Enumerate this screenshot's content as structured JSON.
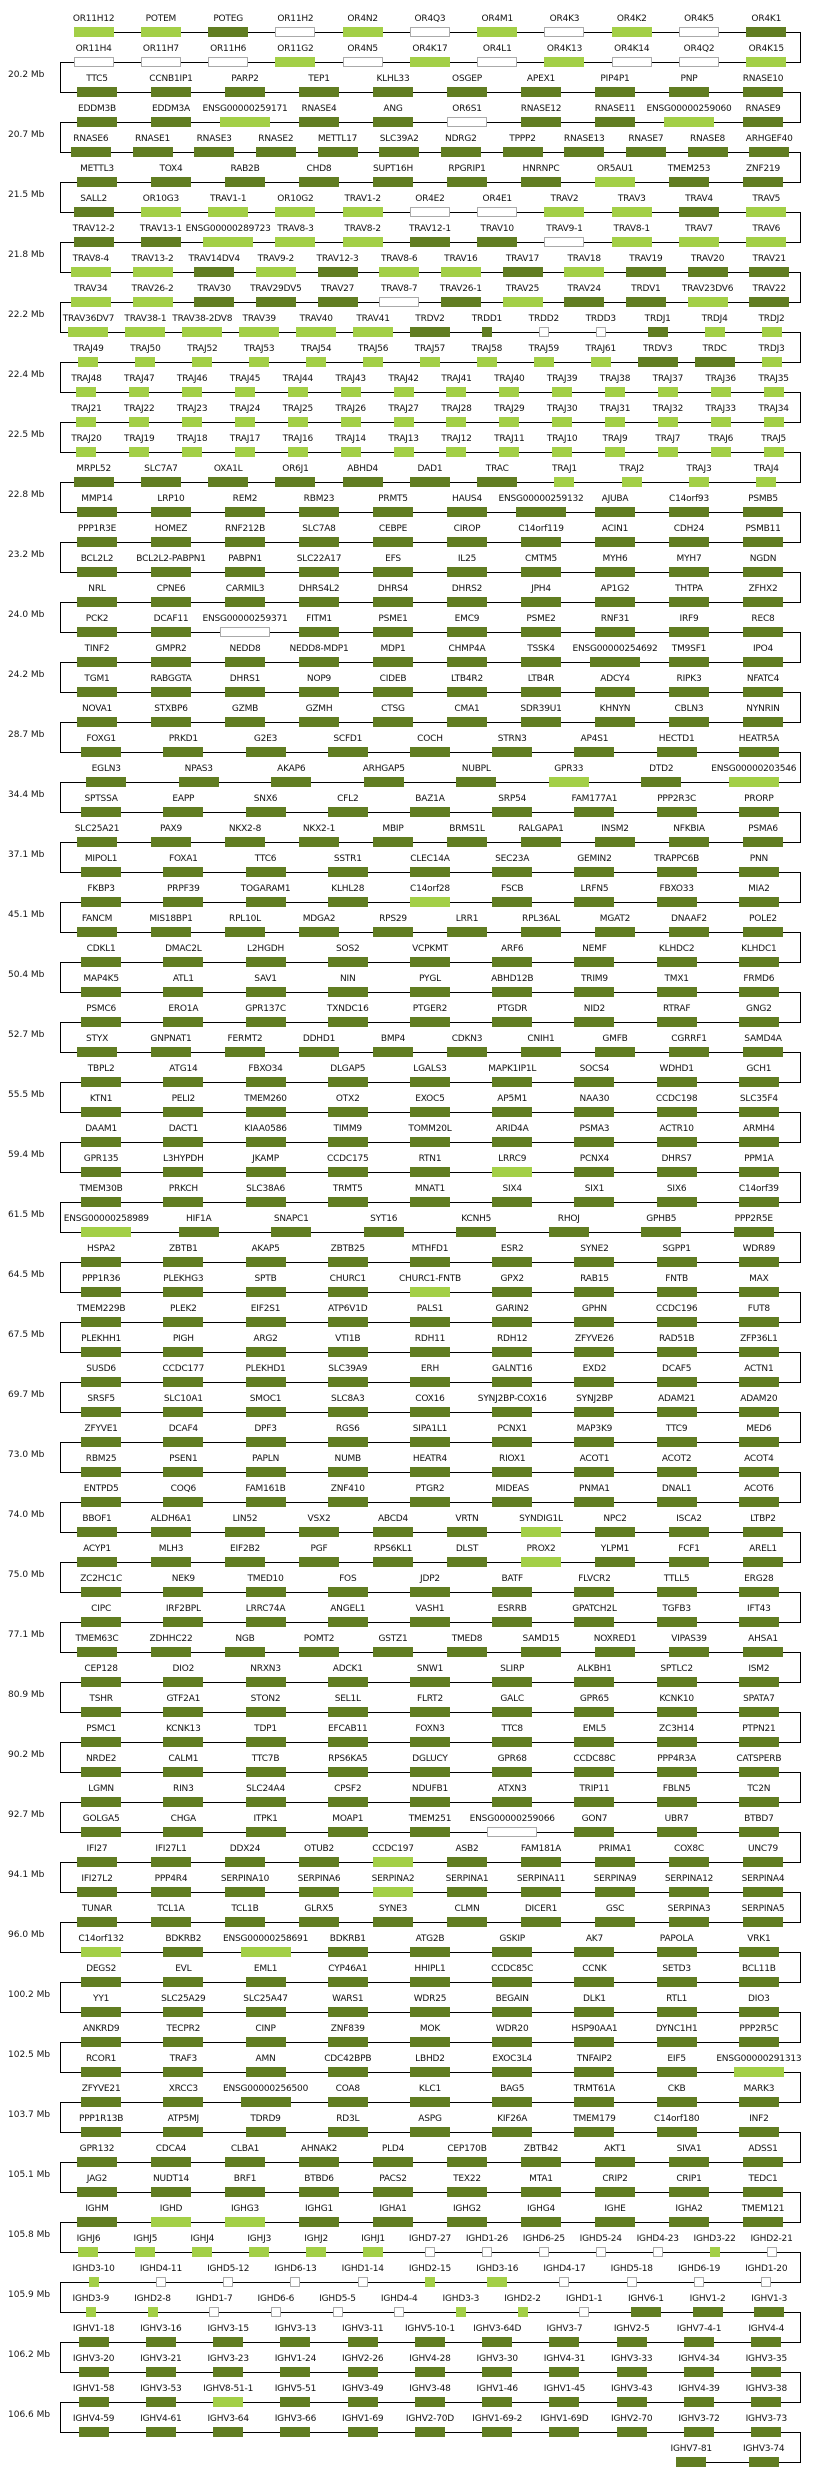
{
  "colors": {
    "d": "#617d22",
    "l": "#a3cf47",
    "w": "#ffffff",
    "border_w": "#aaaaaa"
  },
  "rows": [
    {
      "genes": [
        "OR11H12",
        "POTEM",
        "POTEG",
        "OR11H2",
        "OR4N2",
        "OR4Q3",
        "OR4M1",
        "OR4K3",
        "OR4K2",
        "OR4K5",
        "OR4K1"
      ],
      "types": "lldwlwlwlwd"
    },
    {
      "genes": [
        "OR11H4",
        "OR11H7",
        "OR11H6",
        "OR11G2",
        "OR4N5",
        "OR4K17",
        "OR4L1",
        "OR4K13",
        "OR4K14",
        "OR4Q2",
        "OR4K15"
      ],
      "types": "wwwlwlwlwwl"
    },
    {
      "mb": "20.2 Mb",
      "genes": [
        "TTC5",
        "CCNB1IP1",
        "PARP2",
        "TEP1",
        "KLHL33",
        "OSGEP",
        "APEX1",
        "PIP4P1",
        "PNP",
        "RNASE10"
      ]
    },
    {
      "genes": [
        "EDDM3B",
        "EDDM3A",
        "ENSG00000259171",
        "RNASE4",
        "ANG",
        "OR6S1",
        "RNASE12",
        "RNASE11",
        "ENSG00000259060",
        "RNASE9"
      ],
      "types": "ddlddwddld"
    },
    {
      "mb": "20.7 Mb",
      "genes": [
        "RNASE6",
        "RNASE1",
        "RNASE3",
        "RNASE2",
        "METTL17",
        "SLC39A2",
        "NDRG2",
        "TPPP2",
        "RNASE13",
        "RNASE7",
        "RNASE8",
        "ARHGEF40"
      ]
    },
    {
      "genes": [
        "METTL3",
        "TOX4",
        "RAB2B",
        "CHD8",
        "SUPT16H",
        "RPGRIP1",
        "HNRNPC",
        "OR5AU1",
        "TMEM253",
        "ZNF219"
      ],
      "types": "dddddddldd"
    },
    {
      "mb": "21.5 Mb",
      "genes": [
        "SALL2",
        "OR10G3",
        "TRAV1-1",
        "OR10G2",
        "TRAV1-2",
        "OR4E2",
        "OR4E1",
        "TRAV2",
        "TRAV3",
        "TRAV4",
        "TRAV5"
      ],
      "types": "dllllwwlldl"
    },
    {
      "genes": [
        "TRAV12-2",
        "TRAV13-1",
        "ENSG00000289723",
        "TRAV8-3",
        "TRAV8-2",
        "TRAV12-1",
        "TRAV10",
        "TRAV9-1",
        "TRAV8-1",
        "TRAV7",
        "TRAV6"
      ],
      "types": "ddlllddwlll"
    },
    {
      "mb": "21.8 Mb",
      "genes": [
        "TRAV8-4",
        "TRAV13-2",
        "TRAV14DV4",
        "TRAV9-2",
        "TRAV12-3",
        "TRAV8-6",
        "TRAV16",
        "TRAV17",
        "TRAV18",
        "TRAV19",
        "TRAV20",
        "TRAV21"
      ],
      "types": "lldldlldlddd"
    },
    {
      "genes": [
        "TRAV34",
        "TRAV26-2",
        "TRAV30",
        "TRAV29DV5",
        "TRAV27",
        "TRAV8-7",
        "TRAV26-1",
        "TRAV25",
        "TRAV24",
        "TRDV1",
        "TRAV23DV6",
        "TRAV22"
      ],
      "types": "lldddwdlddld"
    },
    {
      "mb": "22.2 Mb",
      "genes": [
        "TRAV36DV7",
        "TRAV38-1",
        "TRAV38-2DV8",
        "TRAV39",
        "TRAV40",
        "TRAV41",
        "TRDV2",
        "TRDD1",
        "TRDD2",
        "TRDD3",
        "TRDJ1",
        "TRDJ4",
        "TRDJ2"
      ],
      "types": "llllllddwwdll"
    },
    {
      "genes": [
        "TRAJ49",
        "TRAJ50",
        "TRAJ52",
        "TRAJ53",
        "TRAJ54",
        "TRAJ56",
        "TRAJ57",
        "TRAJ58",
        "TRAJ59",
        "TRAJ61",
        "TRDV3",
        "TRDC",
        "TRDJ3"
      ],
      "types": "llllllllllddl"
    },
    {
      "mb": "22.4 Mb",
      "genes": [
        "TRAJ48",
        "TRAJ47",
        "TRAJ46",
        "TRAJ45",
        "TRAJ44",
        "TRAJ43",
        "TRAJ42",
        "TRAJ41",
        "TRAJ40",
        "TRAJ39",
        "TRAJ38",
        "TRAJ37",
        "TRAJ36",
        "TRAJ35"
      ],
      "types": "llllllllllllll"
    },
    {
      "genes": [
        "TRAJ21",
        "TRAJ22",
        "TRAJ23",
        "TRAJ24",
        "TRAJ25",
        "TRAJ26",
        "TRAJ27",
        "TRAJ28",
        "TRAJ29",
        "TRAJ30",
        "TRAJ31",
        "TRAJ32",
        "TRAJ33",
        "TRAJ34"
      ],
      "types": "llllllllllllll"
    },
    {
      "mb": "22.5 Mb",
      "genes": [
        "TRAJ20",
        "TRAJ19",
        "TRAJ18",
        "TRAJ17",
        "TRAJ16",
        "TRAJ14",
        "TRAJ13",
        "TRAJ12",
        "TRAJ11",
        "TRAJ10",
        "TRAJ9",
        "TRAJ7",
        "TRAJ6",
        "TRAJ5"
      ],
      "types": "llllllllllllll"
    },
    {
      "genes": [
        "MRPL52",
        "SLC7A7",
        "OXA1L",
        "OR6J1",
        "ABHD4",
        "DAD1",
        "TRAC",
        "TRAJ1",
        "TRAJ2",
        "TRAJ3",
        "TRAJ4"
      ],
      "types": "dddddddllll"
    },
    {
      "mb": "22.8 Mb",
      "genes": [
        "MMP14",
        "LRP10",
        "REM2",
        "RBM23",
        "PRMT5",
        "HAUS4",
        "ENSG00000259132",
        "AJUBA",
        "C14orf93",
        "PSMB5"
      ]
    },
    {
      "genes": [
        "PPP1R3E",
        "HOMEZ",
        "RNF212B",
        "SLC7A8",
        "CEBPE",
        "CIROP",
        "C14orf119",
        "ACIN1",
        "CDH24",
        "PSMB11"
      ]
    },
    {
      "mb": "23.2 Mb",
      "genes": [
        "BCL2L2",
        "BCL2L2-PABPN1",
        "PABPN1",
        "SLC22A17",
        "EFS",
        "IL25",
        "CMTM5",
        "MYH6",
        "MYH7",
        "NGDN"
      ]
    },
    {
      "genes": [
        "NRL",
        "CPNE6",
        "CARMIL3",
        "DHRS4L2",
        "DHRS4",
        "DHRS2",
        "JPH4",
        "AP1G2",
        "THTPA",
        "ZFHX2"
      ]
    },
    {
      "mb": "24.0 Mb",
      "genes": [
        "PCK2",
        "DCAF11",
        "ENSG00000259371",
        "FITM1",
        "PSME1",
        "EMC9",
        "PSME2",
        "RNF31",
        "IRF9",
        "REC8"
      ],
      "types": "ddwddddddd"
    },
    {
      "genes": [
        "TINF2",
        "GMPR2",
        "NEDD8",
        "NEDD8-MDP1",
        "MDP1",
        "CHMP4A",
        "TSSK4",
        "ENSG00000254692",
        "TM9SF1",
        "IPO4"
      ]
    },
    {
      "mb": "24.2 Mb",
      "genes": [
        "TGM1",
        "RABGGTA",
        "DHRS1",
        "NOP9",
        "CIDEB",
        "LTB4R2",
        "LTB4R",
        "ADCY4",
        "RIPK3",
        "NFATC4"
      ]
    },
    {
      "genes": [
        "NOVA1",
        "STXBP6",
        "GZMB",
        "GZMH",
        "CTSG",
        "CMA1",
        "SDR39U1",
        "KHNYN",
        "CBLN3",
        "NYNRIN"
      ]
    },
    {
      "mb": "28.7 Mb",
      "genes": [
        "FOXG1",
        "PRKD1",
        "G2E3",
        "SCFD1",
        "COCH",
        "STRN3",
        "AP4S1",
        "HECTD1",
        "HEATR5A"
      ]
    },
    {
      "genes": [
        "EGLN3",
        "NPAS3",
        "AKAP6",
        "ARHGAP5",
        "NUBPL",
        "GPR33",
        "DTD2",
        "ENSG00000203546"
      ],
      "types": "dddddldl"
    },
    {
      "mb": "34.4 Mb",
      "genes": [
        "SPTSSA",
        "EAPP",
        "SNX6",
        "CFL2",
        "BAZ1A",
        "SRP54",
        "FAM177A1",
        "PPP2R3C",
        "PRORP"
      ]
    },
    {
      "genes": [
        "SLC25A21",
        "PAX9",
        "NKX2-8",
        "NKX2-1",
        "MBIP",
        "BRMS1L",
        "RALGAPA1",
        "INSM2",
        "NFKBIA",
        "PSMA6"
      ]
    },
    {
      "mb": "37.1 Mb",
      "genes": [
        "MIPOL1",
        "FOXA1",
        "TTC6",
        "SSTR1",
        "CLEC14A",
        "SEC23A",
        "GEMIN2",
        "TRAPPC6B",
        "PNN"
      ]
    },
    {
      "genes": [
        "FKBP3",
        "PRPF39",
        "TOGARAM1",
        "KLHL28",
        "C14orf28",
        "FSCB",
        "LRFN5",
        "FBXO33",
        "MIA2"
      ],
      "types": "ddddldddd"
    },
    {
      "mb": "45.1 Mb",
      "genes": [
        "FANCM",
        "MIS18BP1",
        "RPL10L",
        "MDGA2",
        "RPS29",
        "LRR1",
        "RPL36AL",
        "MGAT2",
        "DNAAF2",
        "POLE2"
      ]
    },
    {
      "genes": [
        "CDKL1",
        "DMAC2L",
        "L2HGDH",
        "SOS2",
        "VCPKMT",
        "ARF6",
        "NEMF",
        "KLHDC2",
        "KLHDC1"
      ]
    },
    {
      "mb": "50.4 Mb",
      "genes": [
        "MAP4K5",
        "ATL1",
        "SAV1",
        "NIN",
        "PYGL",
        "ABHD12B",
        "TRIM9",
        "TMX1",
        "FRMD6"
      ]
    },
    {
      "genes": [
        "PSMC6",
        "ERO1A",
        "GPR137C",
        "TXNDC16",
        "PTGER2",
        "PTGDR",
        "NID2",
        "RTRAF",
        "GNG2"
      ]
    },
    {
      "mb": "52.7 Mb",
      "genes": [
        "STYX",
        "GNPNAT1",
        "FERMT2",
        "DDHD1",
        "BMP4",
        "CDKN3",
        "CNIH1",
        "GMFB",
        "CGRRF1",
        "SAMD4A"
      ]
    },
    {
      "genes": [
        "TBPL2",
        "ATG14",
        "FBXO34",
        "DLGAP5",
        "LGALS3",
        "MAPK1IP1L",
        "SOCS4",
        "WDHD1",
        "GCH1"
      ]
    },
    {
      "mb": "55.5 Mb",
      "genes": [
        "KTN1",
        "PELI2",
        "TMEM260",
        "OTX2",
        "EXOC5",
        "AP5M1",
        "NAA30",
        "CCDC198",
        "SLC35F4"
      ]
    },
    {
      "genes": [
        "DAAM1",
        "DACT1",
        "KIAA0586",
        "TIMM9",
        "TOMM20L",
        "ARID4A",
        "PSMA3",
        "ACTR10",
        "ARMH4"
      ]
    },
    {
      "mb": "59.4 Mb",
      "genes": [
        "GPR135",
        "L3HYPDH",
        "JKAMP",
        "CCDC175",
        "RTN1",
        "LRRC9",
        "PCNX4",
        "DHRS7",
        "PPM1A"
      ],
      "types": "dddddlddd"
    },
    {
      "genes": [
        "TMEM30B",
        "PRKCH",
        "SLC38A6",
        "TRMT5",
        "MNAT1",
        "SIX4",
        "SIX1",
        "SIX6",
        "C14orf39"
      ]
    },
    {
      "mb": "61.5 Mb",
      "genes": [
        "ENSG00000258989",
        "HIF1A",
        "SNAPC1",
        "SYT16",
        "KCNH5",
        "RHOJ",
        "GPHB5",
        "PPP2R5E"
      ],
      "types": "lddddddd"
    },
    {
      "genes": [
        "HSPA2",
        "ZBTB1",
        "AKAP5",
        "ZBTB25",
        "MTHFD1",
        "ESR2",
        "SYNE2",
        "SGPP1",
        "WDR89"
      ]
    },
    {
      "mb": "64.5 Mb",
      "genes": [
        "PPP1R36",
        "PLEKHG3",
        "SPTB",
        "CHURC1",
        "CHURC1-FNTB",
        "GPX2",
        "RAB15",
        "FNTB",
        "MAX"
      ],
      "types": "ddddldddd"
    },
    {
      "genes": [
        "TMEM229B",
        "PLEK2",
        "EIF2S1",
        "ATP6V1D",
        "PALS1",
        "GARIN2",
        "GPHN",
        "CCDC196",
        "FUT8"
      ]
    },
    {
      "mb": "67.5 Mb",
      "genes": [
        "PLEKHH1",
        "PIGH",
        "ARG2",
        "VTI1B",
        "RDH11",
        "RDH12",
        "ZFYVE26",
        "RAD51B",
        "ZFP36L1"
      ]
    },
    {
      "genes": [
        "SUSD6",
        "CCDC177",
        "PLEKHD1",
        "SLC39A9",
        "ERH",
        "GALNT16",
        "EXD2",
        "DCAF5",
        "ACTN1"
      ]
    },
    {
      "mb": "69.7 Mb",
      "genes": [
        "SRSF5",
        "SLC10A1",
        "SMOC1",
        "SLC8A3",
        "COX16",
        "SYNJ2BP-COX16",
        "SYNJ2BP",
        "ADAM21",
        "ADAM20"
      ]
    },
    {
      "genes": [
        "ZFYVE1",
        "DCAF4",
        "DPF3",
        "RGS6",
        "SIPA1L1",
        "PCNX1",
        "MAP3K9",
        "TTC9",
        "MED6"
      ]
    },
    {
      "mb": "73.0 Mb",
      "genes": [
        "RBM25",
        "PSEN1",
        "PAPLN",
        "NUMB",
        "HEATR4",
        "RIOX1",
        "ACOT1",
        "ACOT2",
        "ACOT4"
      ]
    },
    {
      "genes": [
        "ENTPD5",
        "COQ6",
        "FAM161B",
        "ZNF410",
        "PTGR2",
        "MIDEAS",
        "PNMA1",
        "DNAL1",
        "ACOT6"
      ]
    },
    {
      "mb": "74.0 Mb",
      "genes": [
        "BBOF1",
        "ALDH6A1",
        "LIN52",
        "VSX2",
        "ABCD4",
        "VRTN",
        "SYNDIG1L",
        "NPC2",
        "ISCA2",
        "LTBP2"
      ],
      "types": "ddddddlddd"
    },
    {
      "genes": [
        "ACYP1",
        "MLH3",
        "EIF2B2",
        "PGF",
        "RPS6KL1",
        "DLST",
        "PROX2",
        "YLPM1",
        "FCF1",
        "AREL1"
      ],
      "types": "ddddddlddd"
    },
    {
      "mb": "75.0 Mb",
      "genes": [
        "ZC2HC1C",
        "NEK9",
        "TMED10",
        "FOS",
        "JDP2",
        "BATF",
        "FLVCR2",
        "TTLL5",
        "ERG28"
      ]
    },
    {
      "genes": [
        "CIPC",
        "IRF2BPL",
        "LRRC74A",
        "ANGEL1",
        "VASH1",
        "ESRRB",
        "GPATCH2L",
        "TGFB3",
        "IFT43"
      ]
    },
    {
      "mb": "77.1 Mb",
      "genes": [
        "TMEM63C",
        "ZDHHC22",
        "NGB",
        "POMT2",
        "GSTZ1",
        "TMED8",
        "SAMD15",
        "NOXRED1",
        "VIPAS39",
        "AHSA1"
      ]
    },
    {
      "genes": [
        "CEP128",
        "DIO2",
        "NRXN3",
        "ADCK1",
        "SNW1",
        "SLIRP",
        "ALKBH1",
        "SPTLC2",
        "ISM2"
      ]
    },
    {
      "mb": "80.9 Mb",
      "genes": [
        "TSHR",
        "GTF2A1",
        "STON2",
        "SEL1L",
        "FLRT2",
        "GALC",
        "GPR65",
        "KCNK10",
        "SPATA7"
      ]
    },
    {
      "genes": [
        "PSMC1",
        "KCNK13",
        "TDP1",
        "EFCAB11",
        "FOXN3",
        "TTC8",
        "EML5",
        "ZC3H14",
        "PTPN21"
      ]
    },
    {
      "mb": "90.2 Mb",
      "genes": [
        "NRDE2",
        "CALM1",
        "TTC7B",
        "RPS6KA5",
        "DGLUCY",
        "GPR68",
        "CCDC88C",
        "PPP4R3A",
        "CATSPERB"
      ]
    },
    {
      "genes": [
        "LGMN",
        "RIN3",
        "SLC24A4",
        "CPSF2",
        "NDUFB1",
        "ATXN3",
        "TRIP11",
        "FBLN5",
        "TC2N"
      ]
    },
    {
      "mb": "92.7 Mb",
      "genes": [
        "GOLGA5",
        "CHGA",
        "ITPK1",
        "MOAP1",
        "TMEM251",
        "ENSG00000259066",
        "GON7",
        "UBR7",
        "BTBD7"
      ],
      "types": "dddddwddd"
    },
    {
      "genes": [
        "IFI27",
        "IFI27L1",
        "DDX24",
        "OTUB2",
        "CCDC197",
        "ASB2",
        "FAM181A",
        "PRIMA1",
        "COX8C",
        "UNC79"
      ],
      "types": "ddddlddddd"
    },
    {
      "mb": "94.1 Mb",
      "genes": [
        "IFI27L2",
        "PPP4R4",
        "SERPINA10",
        "SERPINA6",
        "SERPINA2",
        "SERPINA1",
        "SERPINA11",
        "SERPINA9",
        "SERPINA12",
        "SERPINA4"
      ],
      "types": "ddddlddddd"
    },
    {
      "genes": [
        "TUNAR",
        "TCL1A",
        "TCL1B",
        "GLRX5",
        "SYNE3",
        "CLMN",
        "DICER1",
        "GSC",
        "SERPINA3",
        "SERPINA5"
      ]
    },
    {
      "mb": "96.0 Mb",
      "genes": [
        "C14orf132",
        "BDKRB2",
        "ENSG00000258691",
        "BDKRB1",
        "ATG2B",
        "GSKIP",
        "AK7",
        "PAPOLA",
        "VRK1"
      ],
      "types": "ldldddddd"
    },
    {
      "genes": [
        "DEGS2",
        "EVL",
        "EML1",
        "CYP46A1",
        "HHIPL1",
        "CCDC85C",
        "CCNK",
        "SETD3",
        "BCL11B"
      ]
    },
    {
      "mb": "100.2 Mb",
      "genes": [
        "YY1",
        "SLC25A29",
        "SLC25A47",
        "WARS1",
        "WDR25",
        "BEGAIN",
        "DLK1",
        "RTL1",
        "DIO3"
      ]
    },
    {
      "genes": [
        "ANKRD9",
        "TECPR2",
        "CINP",
        "ZNF839",
        "MOK",
        "WDR20",
        "HSP90AA1",
        "DYNC1H1",
        "PPP2R5C"
      ]
    },
    {
      "mb": "102.5 Mb",
      "genes": [
        "RCOR1",
        "TRAF3",
        "AMN",
        "CDC42BPB",
        "LBHD2",
        "EXOC3L4",
        "TNFAIP2",
        "EIF5",
        "ENSG00000291313"
      ],
      "types": "ddddddddl"
    },
    {
      "genes": [
        "ZFYVE21",
        "XRCC3",
        "ENSG00000256500",
        "COA8",
        "KLC1",
        "BAG5",
        "TRMT61A",
        "CKB",
        "MARK3"
      ]
    },
    {
      "mb": "103.7 Mb",
      "genes": [
        "PPP1R13B",
        "ATP5MJ",
        "TDRD9",
        "RD3L",
        "ASPG",
        "KIF26A",
        "TMEM179",
        "C14orf180",
        "INF2"
      ]
    },
    {
      "genes": [
        "GPR132",
        "CDCA4",
        "CLBA1",
        "AHNAK2",
        "PLD4",
        "CEP170B",
        "ZBTB42",
        "AKT1",
        "SIVA1",
        "ADSS1"
      ]
    },
    {
      "mb": "105.1 Mb",
      "genes": [
        "JAG2",
        "NUDT14",
        "BRF1",
        "BTBD6",
        "PACS2",
        "TEX22",
        "MTA1",
        "CRIP2",
        "CRIP1",
        "TEDC1"
      ]
    },
    {
      "genes": [
        "IGHM",
        "IGHD",
        "IGHG3",
        "IGHG1",
        "IGHA1",
        "IGHG2",
        "IGHG4",
        "IGHE",
        "IGHA2",
        "TMEM121"
      ],
      "types": "dllddddddd"
    },
    {
      "mb": "105.8 Mb",
      "genes": [
        "IGHJ6",
        "IGHJ5",
        "IGHJ4",
        "IGHJ3",
        "IGHJ2",
        "IGHJ1",
        "IGHD7-27",
        "IGHD1-26",
        "IGHD6-25",
        "IGHD5-24",
        "IGHD4-23",
        "IGHD3-22",
        "IGHD2-21"
      ],
      "types": "llllllwwwwwlw"
    },
    {
      "genes": [
        "IGHD3-10",
        "IGHD4-11",
        "IGHD5-12",
        "IGHD6-13",
        "IGHD1-14",
        "IGHD2-15",
        "IGHD3-16",
        "IGHD4-17",
        "IGHD5-18",
        "IGHD6-19",
        "IGHD1-20"
      ],
      "types": "lwwwwllwwww"
    },
    {
      "mb": "105.9 Mb",
      "genes": [
        "IGHD3-9",
        "IGHD2-8",
        "IGHD1-7",
        "IGHD6-6",
        "IGHD5-5",
        "IGHD4-4",
        "IGHD3-3",
        "IGHD2-2",
        "IGHD1-1",
        "IGHV6-1",
        "IGHV1-2",
        "IGHV1-3"
      ],
      "types": "llwwwwllwddd"
    },
    {
      "genes": [
        "IGHV1-18",
        "IGHV3-16",
        "IGHV3-15",
        "IGHV3-13",
        "IGHV3-11",
        "IGHV5-10-1",
        "IGHV3-64D",
        "IGHV3-7",
        "IGHV2-5",
        "IGHV7-4-1",
        "IGHV4-4"
      ]
    },
    {
      "mb": "106.2 Mb",
      "genes": [
        "IGHV3-20",
        "IGHV3-21",
        "IGHV3-23",
        "IGHV1-24",
        "IGHV2-26",
        "IGHV4-28",
        "IGHV3-30",
        "IGHV4-31",
        "IGHV3-33",
        "IGHV4-34",
        "IGHV3-35"
      ]
    },
    {
      "genes": [
        "IGHV1-58",
        "IGHV3-53",
        "IGHV8-51-1",
        "IGHV5-51",
        "IGHV3-49",
        "IGHV3-48",
        "IGHV1-46",
        "IGHV1-45",
        "IGHV3-43",
        "IGHV4-39",
        "IGHV3-38"
      ],
      "types": "ddldddddddd"
    },
    {
      "mb": "106.6 Mb",
      "genes": [
        "IGHV4-59",
        "IGHV4-61",
        "IGHV3-64",
        "IGHV3-66",
        "IGHV1-69",
        "IGHV2-70D",
        "IGHV1-69-2",
        "IGHV1-69D",
        "IGHV2-70",
        "IGHV3-72",
        "IGHV3-73"
      ]
    },
    {
      "genes": [
        "IGHV7-81",
        "IGHV3-74"
      ]
    }
  ]
}
